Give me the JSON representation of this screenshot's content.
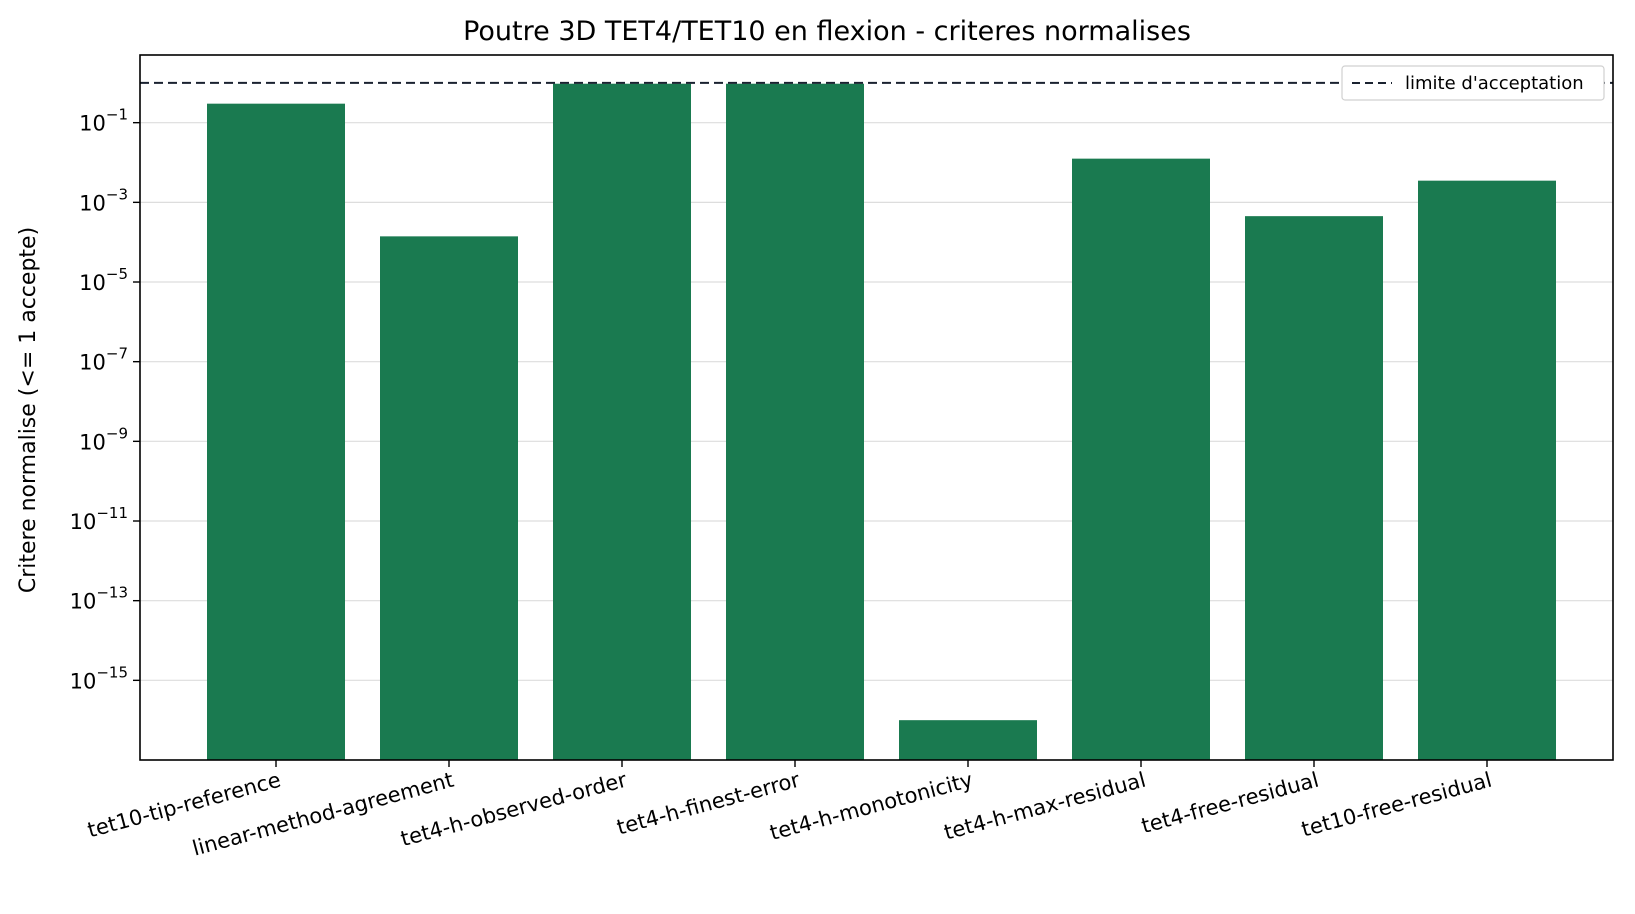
{
  "chart_data": {
    "type": "bar",
    "title": "Poutre 3D TET4/TET10 en flexion - criteres normalises",
    "ylabel": "Critere normalise (<= 1 accepte)",
    "xlabel": "",
    "yscale": "log",
    "ylim": [
      1e-17,
      5
    ],
    "yticks": [
      {
        "value": 0.1,
        "label": "10",
        "exp": "−1"
      },
      {
        "value": 0.001,
        "label": "10",
        "exp": "−3"
      },
      {
        "value": 1e-05,
        "label": "10",
        "exp": "−5"
      },
      {
        "value": 1e-07,
        "label": "10",
        "exp": "−7"
      },
      {
        "value": 1e-09,
        "label": "10",
        "exp": "−9"
      },
      {
        "value": 1e-11,
        "label": "10",
        "exp": "−11"
      },
      {
        "value": 1e-13,
        "label": "10",
        "exp": "−13"
      },
      {
        "value": 1e-15,
        "label": "10",
        "exp": "−15"
      }
    ],
    "categories": [
      "tet10-tip-reference",
      "linear-method-agreement",
      "tet4-h-observed-order",
      "tet4-h-finest-error",
      "tet4-h-monotonicity",
      "tet4-h-max-residual",
      "tet4-free-residual",
      "tet10-free-residual"
    ],
    "values": [
      0.3,
      0.00014,
      0.95,
      0.95,
      1e-16,
      0.0125,
      0.00045,
      0.0035
    ],
    "bar_color": "#1a7a50",
    "threshold": {
      "value": 1,
      "label": "limite d'acceptation",
      "style": "dashed",
      "color": "#1a2230"
    },
    "grid": "y-major",
    "legend_position": "upper-right"
  }
}
